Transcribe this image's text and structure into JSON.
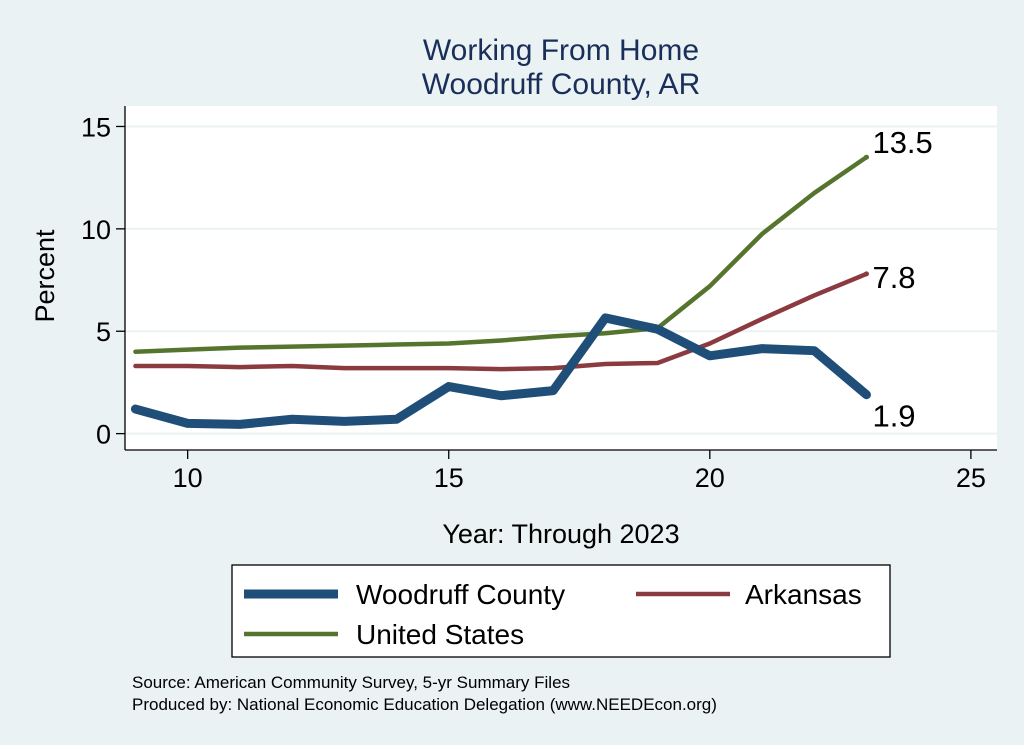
{
  "chart_data": {
    "type": "line",
    "title": [
      "Working From Home",
      "Woodruff County, AR"
    ],
    "xlabel": "Year: Through 2023",
    "ylabel": "Percent",
    "xlim": [
      8.8,
      25.5
    ],
    "ylim": [
      -0.8,
      16
    ],
    "xticks": [
      10,
      15,
      20,
      25
    ],
    "yticks": [
      0,
      5,
      10,
      15
    ],
    "grid": true,
    "legend_placement": "bottom",
    "x": [
      9,
      10,
      11,
      12,
      13,
      14,
      15,
      16,
      17,
      18,
      19,
      20,
      21,
      22,
      23
    ],
    "series": [
      {
        "name": "Woodruff County",
        "color": "#1f4e79",
        "values": [
          1.2,
          0.5,
          0.45,
          0.7,
          0.6,
          0.7,
          2.3,
          1.85,
          2.1,
          5.65,
          5.1,
          3.8,
          4.15,
          4.05,
          1.9
        ],
        "end_label": "1.9"
      },
      {
        "name": "Arkansas",
        "color": "#8b3a3f",
        "values": [
          3.3,
          3.3,
          3.25,
          3.3,
          3.2,
          3.2,
          3.2,
          3.15,
          3.2,
          3.4,
          3.45,
          4.4,
          5.6,
          6.75,
          7.8
        ],
        "end_label": "7.8"
      },
      {
        "name": "United States",
        "color": "#55752e",
        "values": [
          4.0,
          4.1,
          4.2,
          4.25,
          4.3,
          4.35,
          4.4,
          4.55,
          4.75,
          4.9,
          5.15,
          7.2,
          9.75,
          11.75,
          13.5
        ],
        "end_label": "13.5"
      }
    ]
  },
  "source_lines": [
    "Source: American Community Survey, 5-yr Summary Files",
    "Produced by: National Economic Education Delegation (www.NEEDEcon.org)"
  ]
}
